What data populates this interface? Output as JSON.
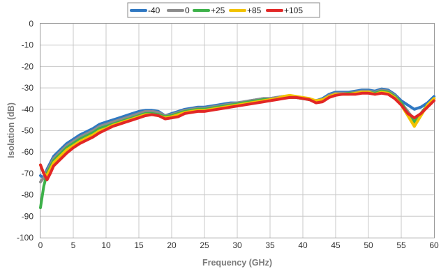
{
  "chart_data": {
    "type": "line",
    "title": "",
    "xlabel": "Frequency (GHz)",
    "ylabel": "Isolation (dB)",
    "xlim": [
      0,
      60
    ],
    "ylim": [
      -100,
      0
    ],
    "xticks": [
      "0",
      "5",
      "10",
      "15",
      "20",
      "25",
      "30",
      "35",
      "40",
      "45",
      "50",
      "55",
      "60"
    ],
    "yticks": [
      "0",
      "-10",
      "-20",
      "-30",
      "-40",
      "-50",
      "-60",
      "-70",
      "-80",
      "-90",
      "-100"
    ],
    "grid": true,
    "legend_position": "top-center",
    "series": [
      {
        "name": "-40",
        "color": "#2f78c2",
        "points": [
          [
            0,
            -71
          ],
          [
            0.5,
            -72
          ],
          [
            1,
            -68
          ],
          [
            1.5,
            -65
          ],
          [
            2,
            -62
          ],
          [
            3,
            -59
          ],
          [
            4,
            -56
          ],
          [
            5,
            -54
          ],
          [
            6,
            -52
          ],
          [
            7,
            -50.5
          ],
          [
            8,
            -49
          ],
          [
            9,
            -47
          ],
          [
            10,
            -46
          ],
          [
            11,
            -45
          ],
          [
            12,
            -44
          ],
          [
            13,
            -43
          ],
          [
            14,
            -42
          ],
          [
            15,
            -41
          ],
          [
            16,
            -40.5
          ],
          [
            17,
            -40.5
          ],
          [
            18,
            -41
          ],
          [
            19,
            -43
          ],
          [
            20,
            -42
          ],
          [
            21,
            -41
          ],
          [
            22,
            -40
          ],
          [
            23,
            -39.5
          ],
          [
            24,
            -39
          ],
          [
            25,
            -39
          ],
          [
            26,
            -38.5
          ],
          [
            27,
            -38
          ],
          [
            28,
            -37.5
          ],
          [
            29,
            -37
          ],
          [
            30,
            -37
          ],
          [
            31,
            -36.5
          ],
          [
            32,
            -36
          ],
          [
            33,
            -35.5
          ],
          [
            34,
            -35
          ],
          [
            35,
            -35
          ],
          [
            36,
            -34.5
          ],
          [
            37,
            -34
          ],
          [
            38,
            -34
          ],
          [
            39,
            -34.5
          ],
          [
            40,
            -35
          ],
          [
            41,
            -35.5
          ],
          [
            42,
            -36
          ],
          [
            43,
            -35
          ],
          [
            44,
            -33
          ],
          [
            45,
            -32
          ],
          [
            46,
            -32
          ],
          [
            47,
            -32
          ],
          [
            48,
            -31.5
          ],
          [
            49,
            -31
          ],
          [
            50,
            -31
          ],
          [
            51,
            -31.5
          ],
          [
            52,
            -30.5
          ],
          [
            53,
            -31
          ],
          [
            54,
            -33
          ],
          [
            55,
            -36
          ],
          [
            56,
            -38
          ],
          [
            57,
            -40
          ],
          [
            58,
            -39
          ],
          [
            59,
            -37
          ],
          [
            60,
            -34
          ]
        ]
      },
      {
        "name": "0",
        "color": "#8c8c8c",
        "points": [
          [
            0,
            -74
          ],
          [
            0.5,
            -72
          ],
          [
            1,
            -69
          ],
          [
            1.5,
            -66
          ],
          [
            2,
            -63
          ],
          [
            3,
            -60
          ],
          [
            4,
            -57
          ],
          [
            5,
            -55
          ],
          [
            6,
            -53
          ],
          [
            7,
            -51.5
          ],
          [
            8,
            -50
          ],
          [
            9,
            -48
          ],
          [
            10,
            -47
          ],
          [
            11,
            -46
          ],
          [
            12,
            -45
          ],
          [
            13,
            -44
          ],
          [
            14,
            -43
          ],
          [
            15,
            -42
          ],
          [
            16,
            -41
          ],
          [
            17,
            -41
          ],
          [
            18,
            -41.5
          ],
          [
            19,
            -43
          ],
          [
            20,
            -42.5
          ],
          [
            21,
            -41.5
          ],
          [
            22,
            -40.5
          ],
          [
            23,
            -40
          ],
          [
            24,
            -39.5
          ],
          [
            25,
            -39.5
          ],
          [
            26,
            -39
          ],
          [
            27,
            -38.5
          ],
          [
            28,
            -38
          ],
          [
            29,
            -37.5
          ],
          [
            30,
            -37
          ],
          [
            31,
            -36.5
          ],
          [
            32,
            -36
          ],
          [
            33,
            -35.5
          ],
          [
            34,
            -35
          ],
          [
            35,
            -35
          ],
          [
            36,
            -34.5
          ],
          [
            37,
            -34
          ],
          [
            38,
            -34
          ],
          [
            39,
            -34.5
          ],
          [
            40,
            -35
          ],
          [
            41,
            -35.5
          ],
          [
            42,
            -36
          ],
          [
            43,
            -35.5
          ],
          [
            44,
            -33.5
          ],
          [
            45,
            -32.5
          ],
          [
            46,
            -32.5
          ],
          [
            47,
            -32.5
          ],
          [
            48,
            -32
          ],
          [
            49,
            -31.5
          ],
          [
            50,
            -31.5
          ],
          [
            51,
            -32
          ],
          [
            52,
            -31
          ],
          [
            53,
            -31.5
          ],
          [
            54,
            -33.5
          ],
          [
            55,
            -37
          ],
          [
            56,
            -41
          ],
          [
            57,
            -45
          ],
          [
            58,
            -42
          ],
          [
            59,
            -38
          ],
          [
            60,
            -35
          ]
        ]
      },
      {
        "name": "+25",
        "color": "#3db14a",
        "points": [
          [
            0,
            -86
          ],
          [
            0.5,
            -76
          ],
          [
            1,
            -70
          ],
          [
            1.5,
            -67
          ],
          [
            2,
            -64
          ],
          [
            3,
            -61
          ],
          [
            4,
            -58
          ],
          [
            5,
            -56
          ],
          [
            6,
            -54
          ],
          [
            7,
            -52.5
          ],
          [
            8,
            -51
          ],
          [
            9,
            -49
          ],
          [
            10,
            -48
          ],
          [
            11,
            -47
          ],
          [
            12,
            -46
          ],
          [
            13,
            -45
          ],
          [
            14,
            -44
          ],
          [
            15,
            -43
          ],
          [
            16,
            -42
          ],
          [
            17,
            -42
          ],
          [
            18,
            -42.5
          ],
          [
            19,
            -43.5
          ],
          [
            20,
            -43
          ],
          [
            21,
            -42
          ],
          [
            22,
            -41
          ],
          [
            23,
            -40.5
          ],
          [
            24,
            -40
          ],
          [
            25,
            -40
          ],
          [
            26,
            -39.5
          ],
          [
            27,
            -39
          ],
          [
            28,
            -38.5
          ],
          [
            29,
            -38
          ],
          [
            30,
            -37.5
          ],
          [
            31,
            -37
          ],
          [
            32,
            -36.5
          ],
          [
            33,
            -36
          ],
          [
            34,
            -35.5
          ],
          [
            35,
            -35.5
          ],
          [
            36,
            -35
          ],
          [
            37,
            -34.5
          ],
          [
            38,
            -34.5
          ],
          [
            39,
            -34.5
          ],
          [
            40,
            -35
          ],
          [
            41,
            -35.5
          ],
          [
            42,
            -36
          ],
          [
            43,
            -35.5
          ],
          [
            44,
            -34
          ],
          [
            45,
            -33
          ],
          [
            46,
            -33
          ],
          [
            47,
            -32.5
          ],
          [
            48,
            -32.5
          ],
          [
            49,
            -32
          ],
          [
            50,
            -32
          ],
          [
            51,
            -32.5
          ],
          [
            52,
            -31.5
          ],
          [
            53,
            -32
          ],
          [
            54,
            -34
          ],
          [
            55,
            -37
          ],
          [
            56,
            -42
          ],
          [
            57,
            -46
          ],
          [
            58,
            -42
          ],
          [
            59,
            -38
          ],
          [
            60,
            -35
          ]
        ]
      },
      {
        "name": "+85",
        "color": "#f2c200",
        "points": [
          [
            0,
            -66
          ],
          [
            0.5,
            -70
          ],
          [
            1,
            -71
          ],
          [
            1.5,
            -68
          ],
          [
            2,
            -65
          ],
          [
            3,
            -62
          ],
          [
            4,
            -59
          ],
          [
            5,
            -57
          ],
          [
            6,
            -55
          ],
          [
            7,
            -53.5
          ],
          [
            8,
            -52
          ],
          [
            9,
            -50
          ],
          [
            10,
            -49
          ],
          [
            11,
            -47.5
          ],
          [
            12,
            -46.5
          ],
          [
            13,
            -45.5
          ],
          [
            14,
            -44.5
          ],
          [
            15,
            -43.5
          ],
          [
            16,
            -42.5
          ],
          [
            17,
            -42.5
          ],
          [
            18,
            -43
          ],
          [
            19,
            -44
          ],
          [
            20,
            -43.5
          ],
          [
            21,
            -42.5
          ],
          [
            22,
            -41.5
          ],
          [
            23,
            -41
          ],
          [
            24,
            -40.5
          ],
          [
            25,
            -40.5
          ],
          [
            26,
            -40
          ],
          [
            27,
            -39.5
          ],
          [
            28,
            -39
          ],
          [
            29,
            -38.5
          ],
          [
            30,
            -38
          ],
          [
            31,
            -37.5
          ],
          [
            32,
            -37
          ],
          [
            33,
            -36.5
          ],
          [
            34,
            -36
          ],
          [
            35,
            -35.5
          ],
          [
            36,
            -35
          ],
          [
            37,
            -34
          ],
          [
            38,
            -33.5
          ],
          [
            39,
            -34
          ],
          [
            40,
            -34.5
          ],
          [
            41,
            -35
          ],
          [
            42,
            -36
          ],
          [
            43,
            -35.5
          ],
          [
            44,
            -34
          ],
          [
            45,
            -33
          ],
          [
            46,
            -33
          ],
          [
            47,
            -33
          ],
          [
            48,
            -32.5
          ],
          [
            49,
            -32
          ],
          [
            50,
            -32
          ],
          [
            51,
            -33
          ],
          [
            52,
            -32
          ],
          [
            53,
            -32.5
          ],
          [
            54,
            -34.5
          ],
          [
            55,
            -38
          ],
          [
            56,
            -43
          ],
          [
            57,
            -48
          ],
          [
            58,
            -43
          ],
          [
            59,
            -38
          ],
          [
            60,
            -35
          ]
        ]
      },
      {
        "name": "+105",
        "color": "#e22726",
        "points": [
          [
            0,
            -66
          ],
          [
            0.5,
            -70
          ],
          [
            1,
            -73
          ],
          [
            1.5,
            -70
          ],
          [
            2,
            -66.5
          ],
          [
            3,
            -63.5
          ],
          [
            4,
            -60.5
          ],
          [
            5,
            -58
          ],
          [
            6,
            -56
          ],
          [
            7,
            -54.5
          ],
          [
            8,
            -53
          ],
          [
            9,
            -51
          ],
          [
            10,
            -49.5
          ],
          [
            11,
            -48
          ],
          [
            12,
            -47
          ],
          [
            13,
            -46
          ],
          [
            14,
            -45
          ],
          [
            15,
            -44
          ],
          [
            16,
            -43
          ],
          [
            17,
            -42.5
          ],
          [
            18,
            -43
          ],
          [
            19,
            -44.5
          ],
          [
            20,
            -44
          ],
          [
            21,
            -43.5
          ],
          [
            22,
            -42
          ],
          [
            23,
            -41.5
          ],
          [
            24,
            -41
          ],
          [
            25,
            -41
          ],
          [
            26,
            -40.5
          ],
          [
            27,
            -40
          ],
          [
            28,
            -39.5
          ],
          [
            29,
            -39
          ],
          [
            30,
            -38.5
          ],
          [
            31,
            -38
          ],
          [
            32,
            -37.5
          ],
          [
            33,
            -37
          ],
          [
            34,
            -36.5
          ],
          [
            35,
            -36
          ],
          [
            36,
            -35.5
          ],
          [
            37,
            -35
          ],
          [
            38,
            -34.5
          ],
          [
            39,
            -34.5
          ],
          [
            40,
            -35
          ],
          [
            41,
            -35.5
          ],
          [
            42,
            -37
          ],
          [
            43,
            -36.5
          ],
          [
            44,
            -34.5
          ],
          [
            45,
            -33.5
          ],
          [
            46,
            -33
          ],
          [
            47,
            -33
          ],
          [
            48,
            -33
          ],
          [
            49,
            -32.5
          ],
          [
            50,
            -32.5
          ],
          [
            51,
            -33
          ],
          [
            52,
            -32.5
          ],
          [
            53,
            -33
          ],
          [
            54,
            -35
          ],
          [
            55,
            -38
          ],
          [
            56,
            -42
          ],
          [
            57,
            -44
          ],
          [
            58,
            -42
          ],
          [
            59,
            -39
          ],
          [
            60,
            -36
          ]
        ]
      }
    ]
  }
}
